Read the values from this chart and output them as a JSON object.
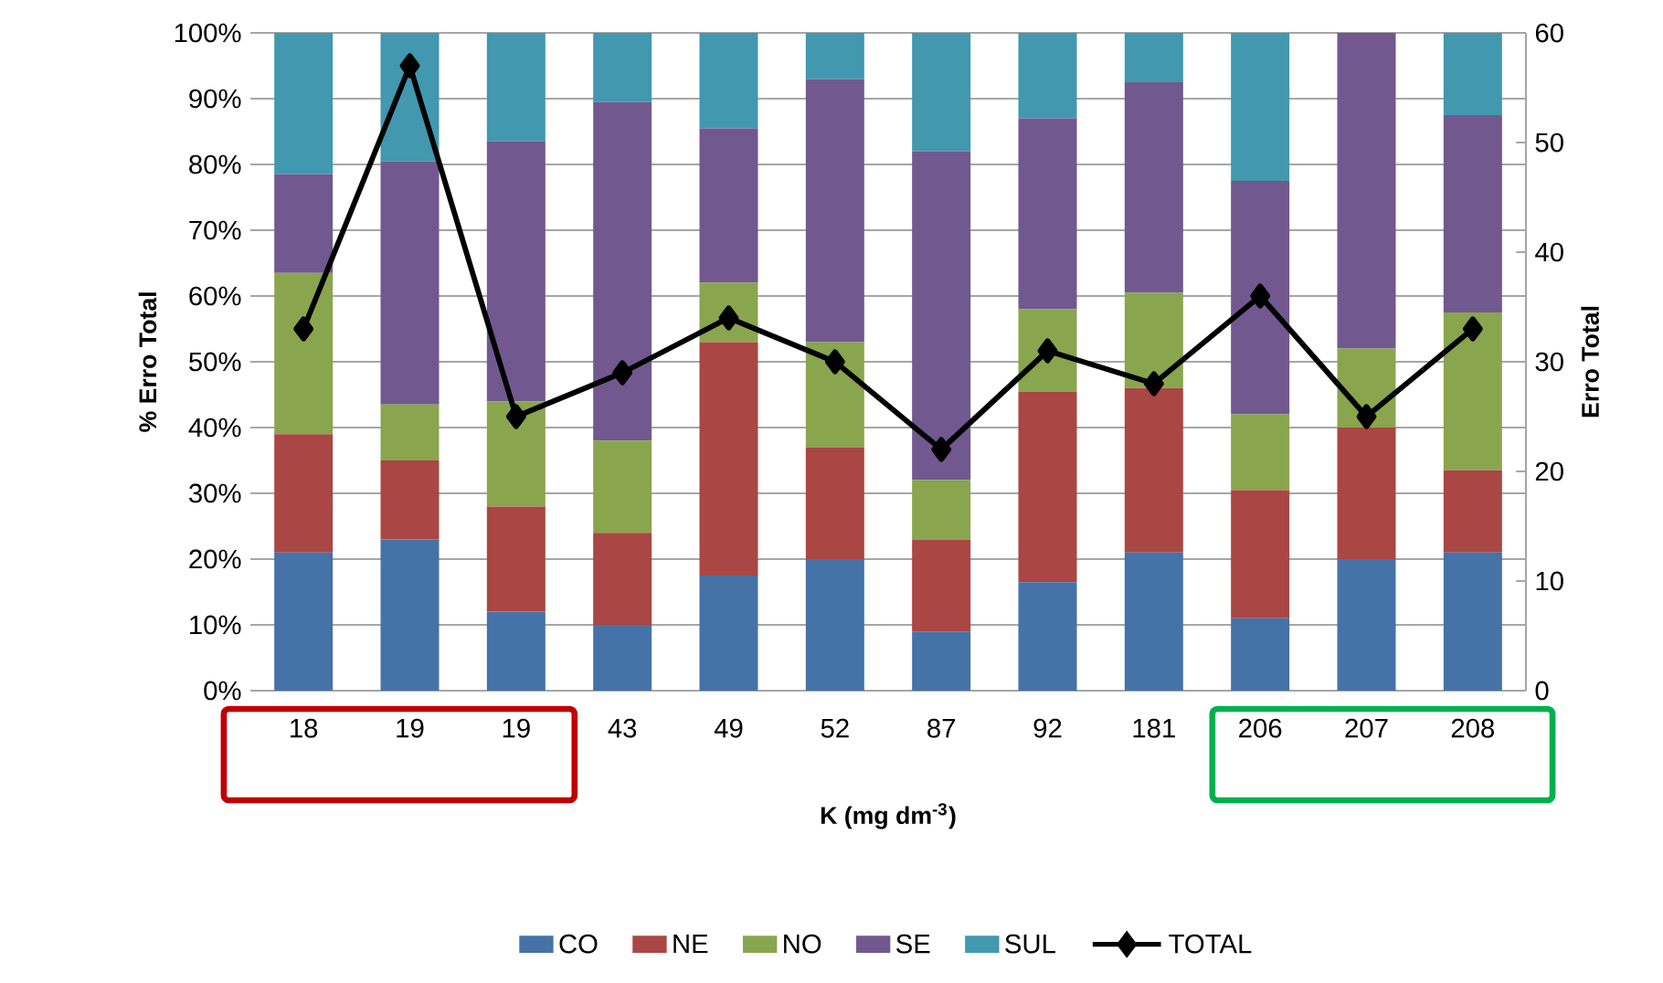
{
  "chart_data": {
    "type": "bar",
    "stacked": true,
    "xlabel": "K (mg dm$^{-3}$)",
    "ylabel": "% Erro Total",
    "y2label": "Erro Total",
    "categories": [
      "18",
      "19",
      "19",
      "43",
      "49",
      "52",
      "87",
      "92",
      "181",
      "206",
      "207",
      "208"
    ],
    "series": [
      {
        "name": "CO",
        "color": "#4572a7",
        "values": [
          21,
          23,
          12,
          10,
          17.5,
          20,
          9,
          16.5,
          21,
          11,
          20,
          21
        ]
      },
      {
        "name": "NE",
        "color": "#aa4643",
        "values": [
          18,
          12,
          16,
          14,
          35.5,
          17,
          14,
          29,
          25,
          19.5,
          20,
          12.5
        ]
      },
      {
        "name": "NO",
        "color": "#89a54e",
        "values": [
          24.5,
          8.5,
          16,
          14,
          9,
          16,
          9,
          12.5,
          14.5,
          11.5,
          12,
          24
        ]
      },
      {
        "name": "SE",
        "color": "#71588f",
        "values": [
          15,
          37,
          39.5,
          51.5,
          23.5,
          40,
          50,
          29,
          32,
          35.5,
          48,
          30
        ]
      },
      {
        "name": "SUL",
        "color": "#4198af",
        "values": [
          21.5,
          19.5,
          16.5,
          10.5,
          14.5,
          7,
          18,
          13,
          7.5,
          22.5,
          0,
          12.5
        ]
      },
      {
        "name": "TOTAL",
        "type": "line",
        "axis": "y2",
        "color": "#000000",
        "marker": "diamond",
        "values": [
          33,
          57,
          25,
          29,
          34,
          30,
          22,
          31,
          28,
          36,
          25,
          33
        ]
      }
    ],
    "ylim": [
      0,
      100
    ],
    "yticks": [
      {
        "value": 0,
        "label": "0%"
      },
      {
        "value": 10,
        "label": "10%"
      },
      {
        "value": 20,
        "label": "20%"
      },
      {
        "value": 30,
        "label": "30%"
      },
      {
        "value": 40,
        "label": "40%"
      },
      {
        "value": 50,
        "label": "50%"
      },
      {
        "value": 60,
        "label": "60%"
      },
      {
        "value": 70,
        "label": "70%"
      },
      {
        "value": 80,
        "label": "80%"
      },
      {
        "value": 90,
        "label": "90%"
      },
      {
        "value": 100,
        "label": "100%"
      }
    ],
    "y2lim": [
      0,
      60
    ],
    "y2ticks": [
      0,
      10,
      20,
      30,
      40,
      50,
      60
    ],
    "grid": "y",
    "legend": "bottom"
  }
}
